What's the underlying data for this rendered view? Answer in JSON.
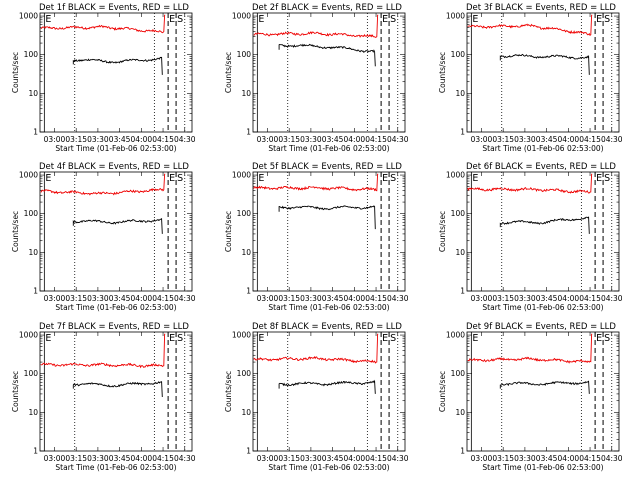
{
  "chart_data": {
    "type": "line",
    "layout": "3x3 grid",
    "panels": [
      {
        "title": "Det 1f BLACK = Events, RED = LLD",
        "ylabel": "Counts/sec",
        "xlabel": "Start Time (01-Feb-06 02:53:00)",
        "red": {
          "start": 480,
          "mid": 520,
          "end": 380,
          "spike": 1050
        },
        "black": {
          "start": 75,
          "mid": 65,
          "end": 80,
          "drop": 30,
          "start_min": 193
        }
      },
      {
        "title": "Det 2f BLACK = Events, RED = LLD",
        "ylabel": "Counts/sec",
        "xlabel": "Start Time (01-Feb-06 02:53:00)",
        "red": {
          "start": 330,
          "mid": 360,
          "end": 290,
          "spike": 1050
        },
        "black": {
          "start": 180,
          "mid": 160,
          "end": 120,
          "drop": 50,
          "start_min": 188
        }
      },
      {
        "title": "Det 3f BLACK = Events, RED = LLD",
        "ylabel": "Counts/sec",
        "xlabel": "Start Time (01-Feb-06 02:53:00)",
        "red": {
          "start": 520,
          "mid": 560,
          "end": 330,
          "spike": 1050
        },
        "black": {
          "start": 95,
          "mid": 90,
          "end": 85,
          "drop": 30,
          "start_min": 193
        }
      },
      {
        "title": "Det 4f BLACK = Events, RED = LLD",
        "ylabel": "Counts/sec",
        "xlabel": "Start Time (01-Feb-06 02:53:00)",
        "red": {
          "start": 380,
          "mid": 330,
          "end": 420,
          "spike": 1050
        },
        "black": {
          "start": 65,
          "mid": 60,
          "end": 70,
          "drop": 30,
          "start_min": 193
        }
      },
      {
        "title": "Det 5f BLACK = Events, RED = LLD",
        "ylabel": "Counts/sec",
        "xlabel": "Start Time (01-Feb-06 02:53:00)",
        "red": {
          "start": 460,
          "mid": 470,
          "end": 420,
          "spike": 1050
        },
        "black": {
          "start": 150,
          "mid": 140,
          "end": 150,
          "drop": 40,
          "start_min": 188
        }
      },
      {
        "title": "Det 6f BLACK = Events, RED = LLD",
        "ylabel": "Counts/sec",
        "xlabel": "Start Time (01-Feb-06 02:53:00)",
        "red": {
          "start": 430,
          "mid": 430,
          "end": 360,
          "spike": 1050
        },
        "black": {
          "start": 60,
          "mid": 60,
          "end": 80,
          "drop": 30,
          "start_min": 193
        }
      },
      {
        "title": "Det 7f BLACK = Events, RED = LLD",
        "ylabel": "Counts/sec",
        "xlabel": "Start Time (01-Feb-06 02:53:00)",
        "red": {
          "start": 170,
          "mid": 170,
          "end": 160,
          "spike": 1050
        },
        "black": {
          "start": 55,
          "mid": 50,
          "end": 60,
          "drop": 25,
          "start_min": 193
        }
      },
      {
        "title": "Det 8f BLACK = Events, RED = LLD",
        "ylabel": "Counts/sec",
        "xlabel": "Start Time (01-Feb-06 02:53:00)",
        "red": {
          "start": 230,
          "mid": 250,
          "end": 200,
          "spike": 1050
        },
        "black": {
          "start": 55,
          "mid": 55,
          "end": 60,
          "drop": 30,
          "start_min": 188
        }
      },
      {
        "title": "Det 9f BLACK = Events, RED = LLD",
        "ylabel": "Counts/sec",
        "xlabel": "Start Time (01-Feb-06 02:53:00)",
        "red": {
          "start": 220,
          "mid": 240,
          "end": 200,
          "spike": 1050
        },
        "black": {
          "start": 55,
          "mid": 55,
          "end": 60,
          "drop": 30,
          "start_min": 193
        }
      }
    ],
    "x_axis": {
      "unit": "minutes of day",
      "range_min": [
        170,
        275
      ],
      "ticks_min": [
        180,
        195,
        210,
        225,
        240,
        255,
        270
      ],
      "tick_labels": [
        "03:00",
        "03:15",
        "03:30",
        "03:45",
        "04:00",
        "04:15",
        "04:30"
      ]
    },
    "y_axis": {
      "scale": "log",
      "range": [
        1,
        1200
      ],
      "ticks": [
        1,
        10,
        100,
        1000
      ],
      "tick_labels": [
        "1",
        "10",
        "100",
        "1000"
      ]
    },
    "markers": [
      {
        "label": "E",
        "time_min": 173,
        "style": "solid"
      },
      {
        "label": "",
        "time_min": 194,
        "style": "dotted"
      },
      {
        "label": "",
        "time_min": 249,
        "style": "dotted"
      },
      {
        "label": "E",
        "time_min": 258.5,
        "style": "dashed"
      },
      {
        "label": "S",
        "time_min": 264,
        "style": "dashed"
      },
      {
        "label": "",
        "time_min": 270,
        "style": "dotted"
      }
    ],
    "spike_time_min": 255.5,
    "series": [
      {
        "key": "black",
        "color": "#000000"
      },
      {
        "key": "red",
        "color": "#ee0000"
      }
    ]
  }
}
